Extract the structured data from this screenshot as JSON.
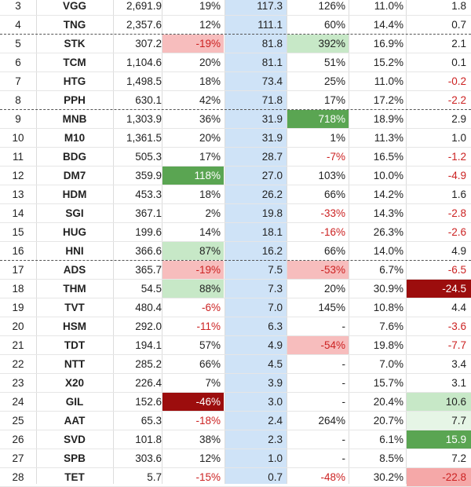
{
  "table": {
    "rows": [
      {
        "idx": "3",
        "ticker": "VGG",
        "v1": "2,691.9",
        "v2": "19%",
        "v3": "117.3",
        "v4": "126%",
        "v5": "11.0%",
        "v6": "1.8"
      },
      {
        "idx": "4",
        "ticker": "TNG",
        "v1": "2,357.6",
        "v2": "12%",
        "v3": "111.1",
        "v4": "60%",
        "v5": "14.4%",
        "v6": "0.7",
        "group_end": true
      },
      {
        "idx": "5",
        "ticker": "STK",
        "v1": "307.2",
        "v2": "-19%",
        "v3": "81.8",
        "v4": "392%",
        "v5": "16.9%",
        "v6": "2.1",
        "v2_hl": "light-red",
        "v4_hl": "light-green"
      },
      {
        "idx": "6",
        "ticker": "TCM",
        "v1": "1,104.6",
        "v2": "20%",
        "v3": "81.1",
        "v4": "51%",
        "v5": "15.2%",
        "v6": "0.1"
      },
      {
        "idx": "7",
        "ticker": "HTG",
        "v1": "1,498.5",
        "v2": "18%",
        "v3": "73.4",
        "v4": "25%",
        "v5": "11.0%",
        "v6": "-0.2"
      },
      {
        "idx": "8",
        "ticker": "PPH",
        "v1": "630.1",
        "v2": "42%",
        "v3": "71.8",
        "v4": "17%",
        "v5": "17.2%",
        "v6": "-2.2",
        "group_end": true
      },
      {
        "idx": "9",
        "ticker": "MNB",
        "v1": "1,303.9",
        "v2": "36%",
        "v3": "31.9",
        "v4": "718%",
        "v5": "18.9%",
        "v6": "2.9",
        "v4_hl": "green"
      },
      {
        "idx": "10",
        "ticker": "M10",
        "v1": "1,361.5",
        "v2": "20%",
        "v3": "31.9",
        "v4": "1%",
        "v5": "11.3%",
        "v6": "1.0"
      },
      {
        "idx": "11",
        "ticker": "BDG",
        "v1": "505.3",
        "v2": "17%",
        "v3": "28.7",
        "v4": "-7%",
        "v5": "16.5%",
        "v6": "-1.2"
      },
      {
        "idx": "12",
        "ticker": "DM7",
        "v1": "359.9",
        "v2": "118%",
        "v3": "27.0",
        "v4": "103%",
        "v5": "10.0%",
        "v6": "-4.9",
        "v2_hl": "green"
      },
      {
        "idx": "13",
        "ticker": "HDM",
        "v1": "453.3",
        "v2": "18%",
        "v3": "26.2",
        "v4": "66%",
        "v5": "14.2%",
        "v6": "1.6"
      },
      {
        "idx": "14",
        "ticker": "SGI",
        "v1": "367.1",
        "v2": "2%",
        "v3": "19.8",
        "v4": "-33%",
        "v5": "14.3%",
        "v6": "-2.8"
      },
      {
        "idx": "15",
        "ticker": "HUG",
        "v1": "199.6",
        "v2": "14%",
        "v3": "18.1",
        "v4": "-16%",
        "v5": "26.3%",
        "v6": "-2.6"
      },
      {
        "idx": "16",
        "ticker": "HNI",
        "v1": "366.6",
        "v2": "87%",
        "v3": "16.2",
        "v4": "66%",
        "v5": "14.0%",
        "v6": "4.9",
        "v2_hl": "light-green",
        "group_end": true
      },
      {
        "idx": "17",
        "ticker": "ADS",
        "v1": "365.7",
        "v2": "-19%",
        "v3": "7.5",
        "v4": "-53%",
        "v5": "6.7%",
        "v6": "-6.5",
        "v2_hl": "light-red",
        "v4_hl": "light-red"
      },
      {
        "idx": "18",
        "ticker": "THM",
        "v1": "54.5",
        "v2": "88%",
        "v3": "7.3",
        "v4": "20%",
        "v5": "30.9%",
        "v6": "-24.5",
        "v2_hl": "light-green",
        "v6_hl": "dark-red"
      },
      {
        "idx": "19",
        "ticker": "TVT",
        "v1": "480.4",
        "v2": "-6%",
        "v3": "7.0",
        "v4": "145%",
        "v5": "10.8%",
        "v6": "4.4"
      },
      {
        "idx": "20",
        "ticker": "HSM",
        "v1": "292.0",
        "v2": "-11%",
        "v3": "6.3",
        "v4": "-",
        "v5": "7.6%",
        "v6": "-3.6"
      },
      {
        "idx": "21",
        "ticker": "TDT",
        "v1": "194.1",
        "v2": "57%",
        "v3": "4.9",
        "v4": "-54%",
        "v5": "19.8%",
        "v6": "-7.7",
        "v4_hl": "light-red"
      },
      {
        "idx": "22",
        "ticker": "NTT",
        "v1": "285.2",
        "v2": "66%",
        "v3": "4.5",
        "v4": "-",
        "v5": "7.0%",
        "v6": "3.4"
      },
      {
        "idx": "23",
        "ticker": "X20",
        "v1": "226.4",
        "v2": "7%",
        "v3": "3.9",
        "v4": "-",
        "v5": "15.7%",
        "v6": "3.1"
      },
      {
        "idx": "24",
        "ticker": "GIL",
        "v1": "152.6",
        "v2": "-46%",
        "v3": "3.0",
        "v4": "-",
        "v5": "20.4%",
        "v6": "10.6",
        "v2_hl": "dark-red",
        "v6_hl": "light-green"
      },
      {
        "idx": "25",
        "ticker": "AAT",
        "v1": "65.3",
        "v2": "-18%",
        "v3": "2.4",
        "v4": "264%",
        "v5": "20.7%",
        "v6": "7.7",
        "v6_hl": "very-light-green"
      },
      {
        "idx": "26",
        "ticker": "SVD",
        "v1": "101.8",
        "v2": "38%",
        "v3": "2.3",
        "v4": "-",
        "v5": "6.1%",
        "v6": "15.9",
        "v6_hl": "green"
      },
      {
        "idx": "27",
        "ticker": "SPB",
        "v1": "303.6",
        "v2": "12%",
        "v3": "1.0",
        "v4": "-",
        "v5": "8.5%",
        "v6": "7.2"
      },
      {
        "idx": "28",
        "ticker": "TET",
        "v1": "5.7",
        "v2": "-15%",
        "v3": "0.7",
        "v4": "-48%",
        "v5": "30.2%",
        "v6": "-22.8",
        "v6_hl": "pink-red"
      }
    ]
  },
  "colors": {
    "highlight_column": "#cfe3f7",
    "negative_text": "#cc2222",
    "light-red": "#f7bdbd",
    "dark-red": "#9c0d0d",
    "light-green": "#c7e8c7",
    "very-light-green": "#e6f5e6",
    "green": "#5aa552",
    "pink-red": "#f5a8a8"
  }
}
